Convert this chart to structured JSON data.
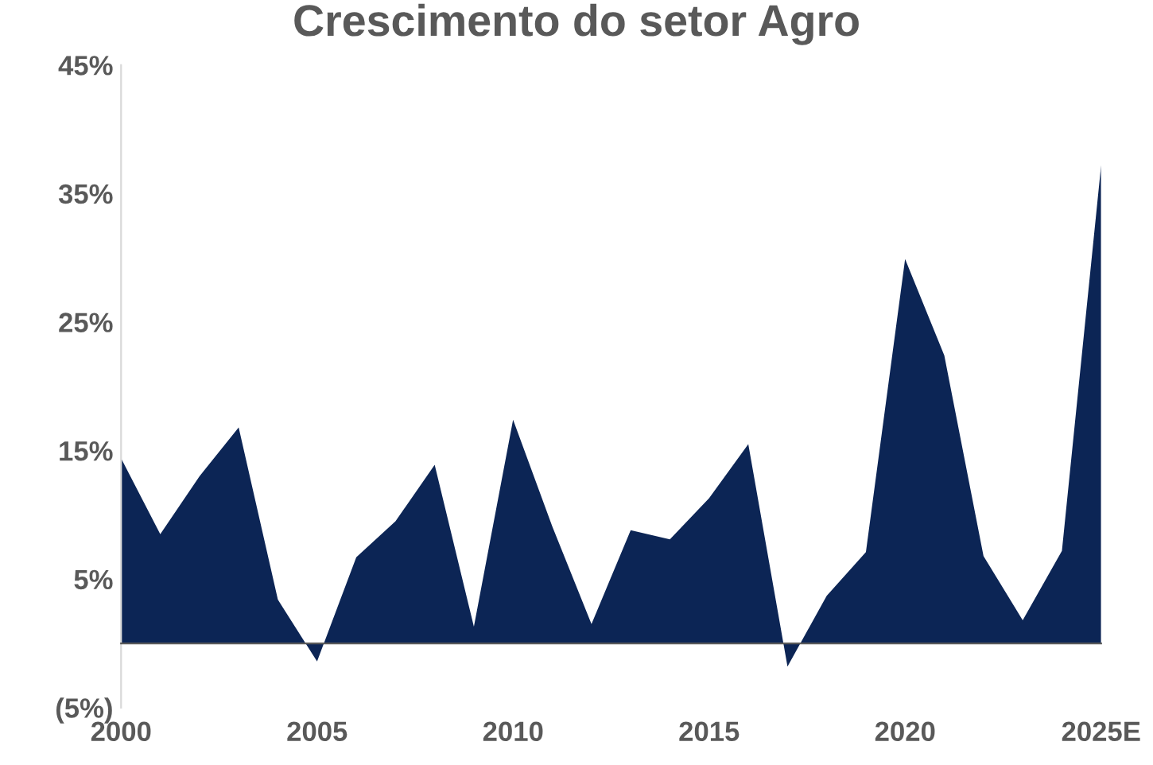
{
  "chart_data": {
    "type": "area",
    "title": "Crescimento do setor Agro",
    "color": "#0c2555",
    "categories": [
      "2000",
      null,
      null,
      null,
      null,
      "2005",
      null,
      null,
      null,
      null,
      "2010",
      null,
      null,
      null,
      null,
      "2015",
      null,
      null,
      null,
      null,
      "2020",
      null,
      null,
      null,
      null,
      "2025E"
    ],
    "values": [
      14.4,
      8.5,
      13.0,
      16.8,
      3.4,
      -1.4,
      6.7,
      9.5,
      13.9,
      1.3,
      17.4,
      9.1,
      1.5,
      8.8,
      8.1,
      11.3,
      15.5,
      -1.8,
      3.7,
      7.1,
      29.9,
      22.4,
      6.8,
      1.8,
      7.2,
      37.2
    ],
    "ylim": [
      -5,
      45
    ],
    "yticks": [
      {
        "value": -5,
        "label": "(5%)"
      },
      {
        "value": 5,
        "label": "5%"
      },
      {
        "value": 15,
        "label": "15%"
      },
      {
        "value": 25,
        "label": "25%"
      },
      {
        "value": 35,
        "label": "35%"
      },
      {
        "value": 45,
        "label": "45%"
      }
    ],
    "grid": false
  }
}
